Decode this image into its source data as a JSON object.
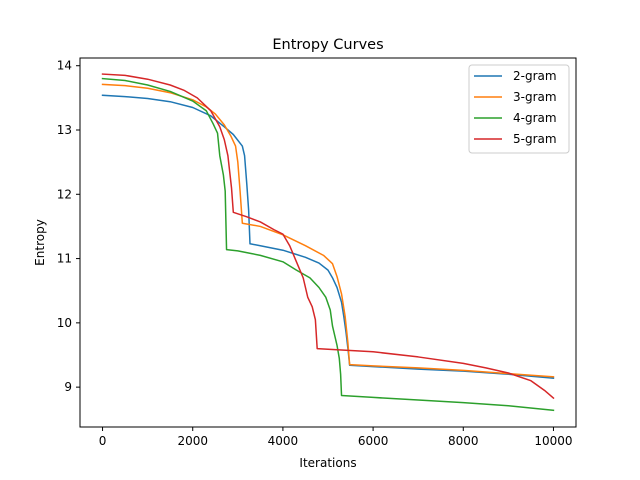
{
  "chart_data": {
    "type": "line",
    "title": "Entropy Curves",
    "xlabel": "Iterations",
    "ylabel": "Entropy",
    "xlim": [
      -500,
      10500
    ],
    "ylim": [
      8.38,
      14.12
    ],
    "xticks": [
      0,
      2000,
      4000,
      6000,
      8000,
      10000
    ],
    "yticks": [
      9,
      10,
      11,
      12,
      13,
      14
    ],
    "grid": false,
    "legend_position": "top-right",
    "series": [
      {
        "name": "2-gram",
        "color": "#1f77b4",
        "points": [
          [
            0,
            13.54
          ],
          [
            500,
            13.52
          ],
          [
            1000,
            13.49
          ],
          [
            1500,
            13.44
          ],
          [
            2000,
            13.35
          ],
          [
            2400,
            13.22
          ],
          [
            2700,
            13.05
          ],
          [
            2900,
            12.93
          ],
          [
            3100,
            12.75
          ],
          [
            3150,
            12.6
          ],
          [
            3200,
            12.15
          ],
          [
            3240,
            11.75
          ],
          [
            3270,
            11.23
          ],
          [
            3500,
            11.2
          ],
          [
            4000,
            11.13
          ],
          [
            4500,
            11.02
          ],
          [
            4800,
            10.93
          ],
          [
            5000,
            10.82
          ],
          [
            5100,
            10.7
          ],
          [
            5200,
            10.55
          ],
          [
            5300,
            10.32
          ],
          [
            5350,
            10.1
          ],
          [
            5400,
            9.85
          ],
          [
            5450,
            9.55
          ],
          [
            5480,
            9.34
          ],
          [
            6000,
            9.32
          ],
          [
            7000,
            9.28
          ],
          [
            8000,
            9.25
          ],
          [
            9000,
            9.2
          ],
          [
            10000,
            9.14
          ]
        ]
      },
      {
        "name": "3-gram",
        "color": "#ff7f0e",
        "points": [
          [
            0,
            13.71
          ],
          [
            500,
            13.69
          ],
          [
            1000,
            13.65
          ],
          [
            1500,
            13.58
          ],
          [
            2000,
            13.47
          ],
          [
            2300,
            13.36
          ],
          [
            2500,
            13.25
          ],
          [
            2700,
            13.08
          ],
          [
            2850,
            12.9
          ],
          [
            2950,
            12.75
          ],
          [
            3000,
            12.5
          ],
          [
            3050,
            12.05
          ],
          [
            3100,
            11.55
          ],
          [
            3500,
            11.5
          ],
          [
            4000,
            11.37
          ],
          [
            4500,
            11.2
          ],
          [
            4900,
            11.05
          ],
          [
            5100,
            10.92
          ],
          [
            5200,
            10.72
          ],
          [
            5300,
            10.45
          ],
          [
            5380,
            10.1
          ],
          [
            5440,
            9.7
          ],
          [
            5480,
            9.35
          ],
          [
            6000,
            9.33
          ],
          [
            7000,
            9.3
          ],
          [
            8000,
            9.26
          ],
          [
            9000,
            9.21
          ],
          [
            10000,
            9.16
          ]
        ]
      },
      {
        "name": "4-gram",
        "color": "#2ca02c",
        "points": [
          [
            0,
            13.8
          ],
          [
            500,
            13.77
          ],
          [
            1000,
            13.7
          ],
          [
            1500,
            13.6
          ],
          [
            2000,
            13.45
          ],
          [
            2300,
            13.3
          ],
          [
            2450,
            13.1
          ],
          [
            2550,
            12.95
          ],
          [
            2600,
            12.6
          ],
          [
            2680,
            12.3
          ],
          [
            2720,
            12.05
          ],
          [
            2750,
            11.14
          ],
          [
            3000,
            11.12
          ],
          [
            3500,
            11.05
          ],
          [
            4000,
            10.95
          ],
          [
            4300,
            10.82
          ],
          [
            4600,
            10.7
          ],
          [
            4800,
            10.55
          ],
          [
            4950,
            10.4
          ],
          [
            5050,
            10.2
          ],
          [
            5100,
            9.95
          ],
          [
            5200,
            9.65
          ],
          [
            5250,
            9.45
          ],
          [
            5280,
            9.2
          ],
          [
            5300,
            8.87
          ],
          [
            6000,
            8.84
          ],
          [
            7000,
            8.8
          ],
          [
            8000,
            8.76
          ],
          [
            9000,
            8.71
          ],
          [
            10000,
            8.64
          ]
        ]
      },
      {
        "name": "5-gram",
        "color": "#d62728",
        "points": [
          [
            0,
            13.87
          ],
          [
            500,
            13.85
          ],
          [
            1000,
            13.79
          ],
          [
            1500,
            13.7
          ],
          [
            1800,
            13.62
          ],
          [
            2100,
            13.5
          ],
          [
            2400,
            13.3
          ],
          [
            2600,
            13.05
          ],
          [
            2700,
            12.85
          ],
          [
            2780,
            12.6
          ],
          [
            2820,
            12.35
          ],
          [
            2860,
            12.1
          ],
          [
            2900,
            11.72
          ],
          [
            3200,
            11.65
          ],
          [
            3500,
            11.57
          ],
          [
            3800,
            11.45
          ],
          [
            4000,
            11.38
          ],
          [
            4150,
            11.2
          ],
          [
            4300,
            10.95
          ],
          [
            4450,
            10.7
          ],
          [
            4550,
            10.4
          ],
          [
            4650,
            10.25
          ],
          [
            4720,
            10.05
          ],
          [
            4760,
            9.6
          ],
          [
            5000,
            9.59
          ],
          [
            6000,
            9.55
          ],
          [
            7000,
            9.47
          ],
          [
            8000,
            9.37
          ],
          [
            8500,
            9.3
          ],
          [
            9000,
            9.22
          ],
          [
            9500,
            9.1
          ],
          [
            9800,
            8.95
          ],
          [
            10000,
            8.83
          ]
        ]
      }
    ]
  }
}
